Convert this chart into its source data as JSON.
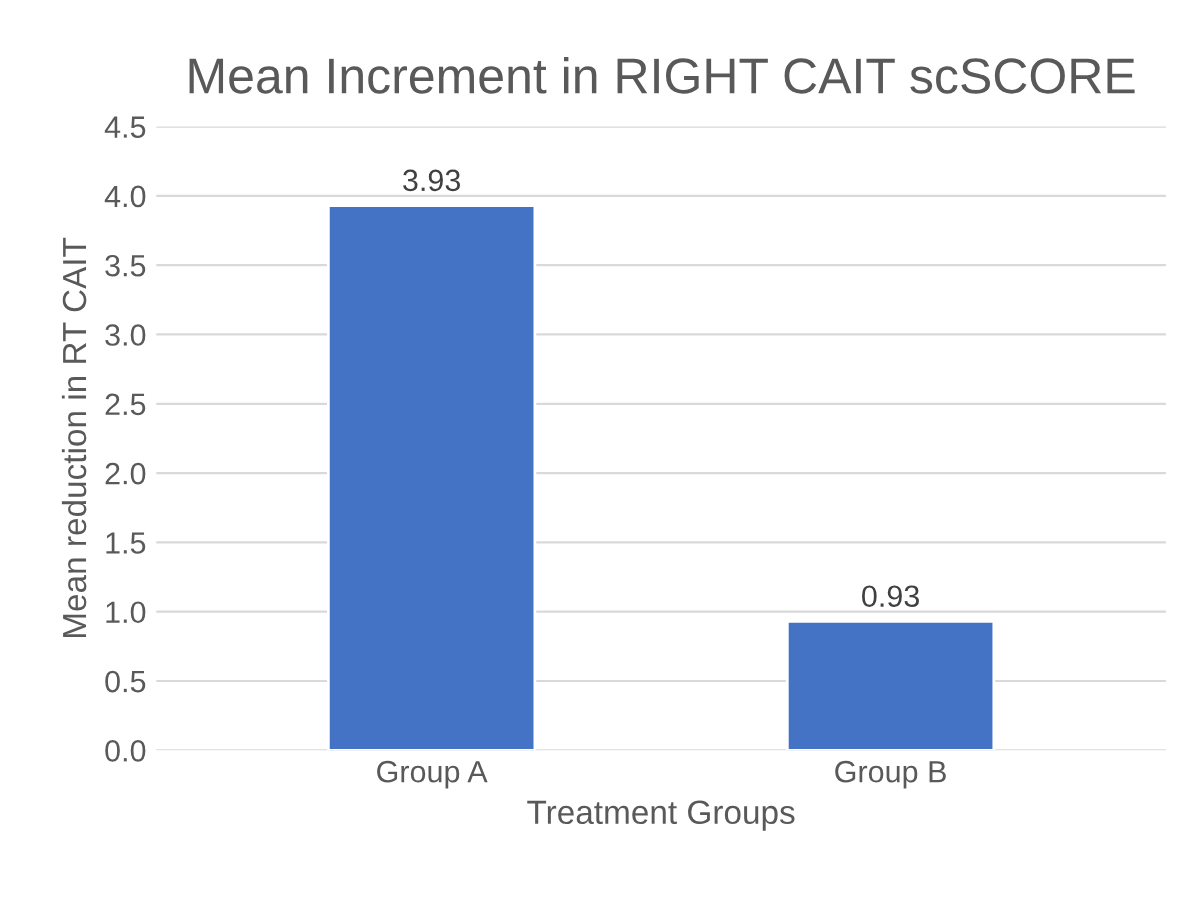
{
  "chart_data": {
    "type": "bar",
    "title": "Mean Increment in RIGHT CAIT scSCORE",
    "xlabel": "Treatment Groups",
    "ylabel": "Mean reduction in RT CAIT",
    "categories": [
      "Group A",
      "Group B"
    ],
    "values": [
      3.93,
      0.93
    ],
    "color": "#4472c4",
    "value_labels": [
      "3.93",
      "0.93"
    ],
    "ylim": [
      0,
      4.5
    ],
    "yticks": [
      {
        "value": 0,
        "label": "0.0"
      },
      {
        "value": 0.5,
        "label": "0.5"
      },
      {
        "value": 1,
        "label": "1.0"
      },
      {
        "value": 1.5,
        "label": "1.5"
      },
      {
        "value": 2,
        "label": "2.0"
      },
      {
        "value": 2.5,
        "label": "2.5"
      },
      {
        "value": 3,
        "label": "3.0"
      },
      {
        "value": 3.5,
        "label": "3.5"
      },
      {
        "value": 4,
        "label": "4.0"
      },
      {
        "value": 4.5,
        "label": "4.5"
      }
    ],
    "grid": "y"
  }
}
